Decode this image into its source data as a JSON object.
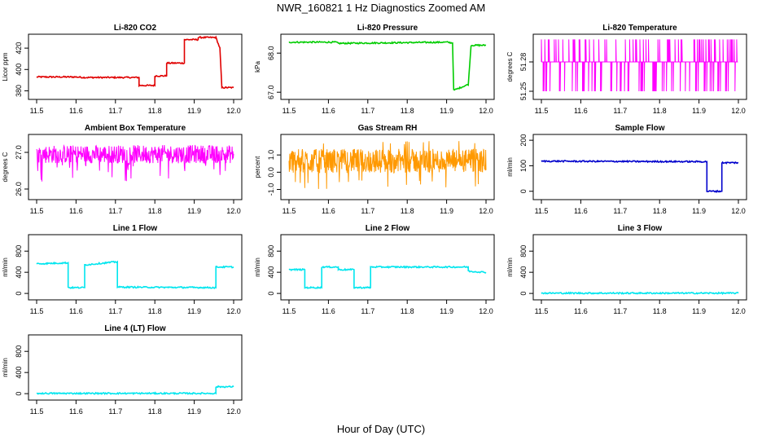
{
  "title": "NWR_160821  1 Hz Diagnostics Zoomed AM",
  "xlabel": "Hour of Day (UTC)",
  "chart_data": [
    {
      "id": "co2",
      "type": "line",
      "title": "Li-820 CO2",
      "ylabel": "Licor ppm",
      "color": "#e00000",
      "xlim": [
        11.5,
        12.0
      ],
      "ylim": [
        375,
        430
      ],
      "yticks": [
        {
          "v": 380,
          "label": "380"
        },
        {
          "v": 400,
          "label": "400"
        },
        {
          "v": 420,
          "label": "420"
        }
      ],
      "series": [
        {
          "x": [
            11.5,
            11.6,
            11.62,
            11.76,
            11.76,
            11.8,
            11.8,
            11.83,
            11.83,
            11.875,
            11.875,
            11.91,
            11.91,
            11.955,
            11.965,
            11.97,
            12.0
          ],
          "y": [
            393,
            393,
            392.5,
            392.5,
            385,
            385,
            394,
            394,
            406,
            406,
            428,
            428,
            430,
            430,
            420,
            383,
            383
          ]
        }
      ]
    },
    {
      "id": "pressure",
      "type": "line",
      "title": "Li-820 Pressure",
      "ylabel": "kPa",
      "color": "#00cc00",
      "xlim": [
        11.5,
        12.0
      ],
      "ylim": [
        66.9,
        68.4
      ],
      "yticks": [
        {
          "v": 67.0,
          "label": "67.0"
        },
        {
          "v": 68.0,
          "label": "68.0"
        }
      ],
      "series": [
        {
          "x": [
            11.5,
            11.62,
            11.625,
            11.9,
            11.915,
            11.918,
            11.955,
            11.962,
            12.0
          ],
          "y": [
            68.28,
            68.28,
            68.25,
            68.28,
            68.26,
            67.05,
            67.2,
            68.2,
            68.2
          ]
        }
      ]
    },
    {
      "id": "temp820",
      "type": "line",
      "title": "Li-820 Temperature",
      "ylabel": "degrees C",
      "color": "#ff00ff",
      "xlim": [
        11.5,
        12.0
      ],
      "ylim": [
        51.245,
        51.305
      ],
      "yticks": [
        {
          "v": 51.25,
          "label": "51.25"
        },
        {
          "v": 51.28,
          "label": "51.28"
        }
      ],
      "series": [
        {
          "x": [
            11.5,
            12.0
          ],
          "y": [
            51.28,
            51.28
          ]
        }
      ]
    },
    {
      "id": "ambient",
      "type": "line",
      "title": "Ambient Box Temperature",
      "ylabel": "degrees C",
      "color": "#ff00ff",
      "xlim": [
        11.5,
        12.0
      ],
      "ylim": [
        25.8,
        27.4
      ],
      "yticks": [
        {
          "v": 26.0,
          "label": "26.0"
        },
        {
          "v": 27.0,
          "label": "27.0"
        }
      ],
      "series": [
        {
          "x": [
            11.5,
            12.0
          ],
          "y": [
            26.95,
            26.95
          ]
        }
      ]
    },
    {
      "id": "rh",
      "type": "line",
      "title": "Gas Stream RH",
      "ylabel": "percent",
      "color": "#ff9900",
      "xlim": [
        11.5,
        12.0
      ],
      "ylim": [
        -1.4,
        2.0
      ],
      "yticks": [
        {
          "v": -1.0,
          "label": "-1.0"
        },
        {
          "v": 0.0,
          "label": "0.0"
        },
        {
          "v": 1.0,
          "label": "1.0"
        }
      ],
      "series": [
        {
          "x": [
            11.5,
            12.0
          ],
          "y": [
            0.6,
            0.6
          ]
        }
      ]
    },
    {
      "id": "sample",
      "type": "line",
      "title": "Sample Flow",
      "ylabel": "ml/min",
      "color": "#0000cc",
      "xlim": [
        11.5,
        12.0
      ],
      "ylim": [
        -20,
        210
      ],
      "yticks": [
        {
          "v": 0,
          "label": "0"
        },
        {
          "v": 100,
          "label": "100"
        },
        {
          "v": 200,
          "label": "200"
        }
      ],
      "series": [
        {
          "x": [
            11.5,
            11.92,
            11.92,
            11.958,
            11.958,
            12.0
          ],
          "y": [
            118,
            116,
            0,
            0,
            112,
            112
          ]
        }
      ]
    },
    {
      "id": "line1",
      "type": "line",
      "title": "Line 1 Flow",
      "ylabel": "ml/min",
      "color": "#00e5ee",
      "xlim": [
        11.5,
        12.0
      ],
      "ylim": [
        -60,
        1050
      ],
      "yticks": [
        {
          "v": 0,
          "label": "0"
        },
        {
          "v": 400,
          "label": "400"
        },
        {
          "v": 800,
          "label": "800"
        }
      ],
      "series": [
        {
          "x": [
            11.5,
            11.58,
            11.58,
            11.622,
            11.622,
            11.705,
            11.705,
            11.955,
            11.955,
            12.0
          ],
          "y": [
            560,
            580,
            110,
            110,
            540,
            600,
            120,
            110,
            500,
            500
          ]
        }
      ]
    },
    {
      "id": "line2",
      "type": "line",
      "title": "Line 2 Flow",
      "ylabel": "ml/min",
      "color": "#00e5ee",
      "xlim": [
        11.5,
        12.0
      ],
      "ylim": [
        -60,
        1050
      ],
      "yticks": [
        {
          "v": 0,
          "label": "0"
        },
        {
          "v": 400,
          "label": "400"
        },
        {
          "v": 800,
          "label": "800"
        }
      ],
      "series": [
        {
          "x": [
            11.5,
            11.54,
            11.54,
            11.583,
            11.583,
            11.625,
            11.625,
            11.665,
            11.665,
            11.707,
            11.707,
            11.955,
            11.955,
            12.0
          ],
          "y": [
            450,
            450,
            110,
            110,
            500,
            500,
            450,
            450,
            110,
            110,
            500,
            500,
            420,
            400
          ]
        }
      ]
    },
    {
      "id": "line3",
      "type": "line",
      "title": "Line 3 Flow",
      "ylabel": "ml/min",
      "color": "#00e5ee",
      "xlim": [
        11.5,
        12.0
      ],
      "ylim": [
        -60,
        1050
      ],
      "yticks": [
        {
          "v": 0,
          "label": "0"
        },
        {
          "v": 400,
          "label": "400"
        },
        {
          "v": 800,
          "label": "800"
        }
      ],
      "series": [
        {
          "x": [
            11.5,
            12.0
          ],
          "y": [
            5,
            5
          ]
        }
      ]
    },
    {
      "id": "line4",
      "type": "line",
      "title": "Line 4 (LT) Flow",
      "ylabel": "ml/min",
      "color": "#00e5ee",
      "xlim": [
        11.5,
        12.0
      ],
      "ylim": [
        -60,
        1050
      ],
      "yticks": [
        {
          "v": 0,
          "label": "0"
        },
        {
          "v": 400,
          "label": "400"
        },
        {
          "v": 800,
          "label": "800"
        }
      ],
      "series": [
        {
          "x": [
            11.5,
            11.955,
            11.955,
            12.0
          ],
          "y": [
            5,
            5,
            130,
            130
          ]
        }
      ]
    }
  ],
  "xticks": [
    {
      "v": 11.5,
      "label": "11.5"
    },
    {
      "v": 11.6,
      "label": "11.6"
    },
    {
      "v": 11.7,
      "label": "11.7"
    },
    {
      "v": 11.8,
      "label": "11.8"
    },
    {
      "v": 11.9,
      "label": "11.9"
    },
    {
      "v": 12.0,
      "label": "12.0"
    }
  ]
}
